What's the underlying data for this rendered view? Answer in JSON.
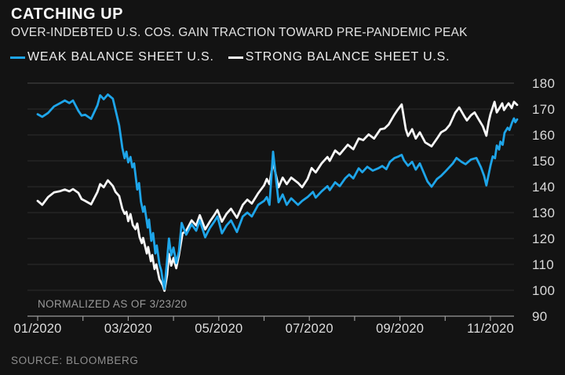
{
  "header": {
    "title": "CATCHING UP",
    "subtitle": "OVER-INDEBTED U.S. COS. GAIN TRACTION TOWARD PRE-PANDEMIC PEAK"
  },
  "footer": {
    "source": "SOURCE: BLOOMBERG"
  },
  "colors": {
    "background": "#131313",
    "weak_line": "#1ea5e9",
    "strong_line": "#f7f7f7",
    "gridline": "#2c2c2c",
    "top_border": "#4a4a4a",
    "axis": "#9a9a9a"
  },
  "chart_data": {
    "type": "line",
    "title": "CATCHING UP",
    "subtitle": "OVER-INDEBTED U.S. COS. GAIN TRACTION TOWARD PRE-PANDEMIC PEAK",
    "annotation": "NORMALIZED AS OF 3/23/20",
    "grid": "horizontal",
    "legend_position": "top-left",
    "x_axis": {
      "unit": "months since 01/2020 tick",
      "range": [
        0,
        10.6
      ],
      "minor_tick_positions": [
        0,
        1,
        2,
        3,
        4,
        5,
        6,
        7,
        8,
        9,
        10
      ],
      "tick_labels": [
        {
          "pos": 0,
          "label": "01/2020"
        },
        {
          "pos": 2,
          "label": "03/2020"
        },
        {
          "pos": 4,
          "label": "05/2020"
        },
        {
          "pos": 6,
          "label": "07/2020"
        },
        {
          "pos": 8,
          "label": "09/2020"
        },
        {
          "pos": 10,
          "label": "11/2020"
        }
      ]
    },
    "y_axis": {
      "range": [
        90,
        180
      ],
      "side": "right",
      "ticks": [
        180,
        170,
        160,
        150,
        140,
        130,
        120,
        110,
        100,
        90
      ]
    },
    "series": [
      {
        "name": "WEAK BALANCE SHEET U.S.",
        "color": "#1ea5e9",
        "points": [
          [
            0.0,
            168.0
          ],
          [
            0.1,
            167.0
          ],
          [
            0.23,
            168.5
          ],
          [
            0.36,
            171.0
          ],
          [
            0.5,
            172.3
          ],
          [
            0.6,
            173.3
          ],
          [
            0.7,
            172.3
          ],
          [
            0.78,
            173.3
          ],
          [
            0.9,
            169.3
          ],
          [
            0.97,
            167.5
          ],
          [
            1.05,
            167.8
          ],
          [
            1.18,
            166.2
          ],
          [
            1.32,
            171.5
          ],
          [
            1.38,
            175.3
          ],
          [
            1.46,
            173.8
          ],
          [
            1.55,
            175.6
          ],
          [
            1.66,
            174.0
          ],
          [
            1.72,
            169.7
          ],
          [
            1.8,
            163.6
          ],
          [
            1.87,
            155.0
          ],
          [
            1.92,
            151.0
          ],
          [
            1.96,
            153.5
          ],
          [
            2.0,
            149.4
          ],
          [
            2.05,
            151.5
          ],
          [
            2.09,
            147.5
          ],
          [
            2.13,
            149.0
          ],
          [
            2.2,
            138.9
          ],
          [
            2.24,
            141.4
          ],
          [
            2.28,
            134.3
          ],
          [
            2.33,
            130.3
          ],
          [
            2.36,
            132.4
          ],
          [
            2.43,
            124.2
          ],
          [
            2.46,
            127.3
          ],
          [
            2.51,
            119.1
          ],
          [
            2.55,
            122.1
          ],
          [
            2.6,
            114.2
          ],
          [
            2.63,
            117.3
          ],
          [
            2.69,
            110.0
          ],
          [
            2.73,
            107.6
          ],
          [
            2.76,
            104.0
          ],
          [
            2.8,
            100.5
          ],
          [
            2.86,
            112.0
          ],
          [
            2.9,
            120.0
          ],
          [
            2.95,
            113.5
          ],
          [
            3.0,
            116.5
          ],
          [
            3.06,
            110.5
          ],
          [
            3.12,
            115.0
          ],
          [
            3.18,
            126.0
          ],
          [
            3.28,
            121.5
          ],
          [
            3.4,
            125.5
          ],
          [
            3.5,
            123.0
          ],
          [
            3.58,
            127.0
          ],
          [
            3.7,
            120.5
          ],
          [
            3.8,
            124.0
          ],
          [
            3.9,
            126.5
          ],
          [
            3.97,
            128.5
          ],
          [
            4.07,
            122.0
          ],
          [
            4.17,
            125.0
          ],
          [
            4.27,
            127.0
          ],
          [
            4.4,
            122.5
          ],
          [
            4.53,
            128.5
          ],
          [
            4.63,
            130.0
          ],
          [
            4.73,
            128.5
          ],
          [
            4.87,
            133.0
          ],
          [
            5.0,
            134.5
          ],
          [
            5.06,
            136.0
          ],
          [
            5.12,
            133.0
          ],
          [
            5.2,
            153.5
          ],
          [
            5.32,
            134.0
          ],
          [
            5.41,
            137.0
          ],
          [
            5.5,
            133.0
          ],
          [
            5.6,
            135.5
          ],
          [
            5.75,
            133.0
          ],
          [
            5.84,
            134.5
          ],
          [
            5.96,
            136.0
          ],
          [
            6.08,
            138.0
          ],
          [
            6.14,
            135.8
          ],
          [
            6.27,
            138.2
          ],
          [
            6.4,
            140.2
          ],
          [
            6.45,
            138.7
          ],
          [
            6.57,
            141.7
          ],
          [
            6.67,
            140.2
          ],
          [
            6.79,
            143.2
          ],
          [
            6.88,
            144.7
          ],
          [
            6.97,
            143.2
          ],
          [
            7.09,
            147.1
          ],
          [
            7.17,
            145.6
          ],
          [
            7.28,
            147.7
          ],
          [
            7.4,
            146.2
          ],
          [
            7.52,
            147.1
          ],
          [
            7.61,
            148.0
          ],
          [
            7.7,
            146.8
          ],
          [
            7.78,
            149.6
          ],
          [
            7.88,
            151.1
          ],
          [
            7.97,
            151.7
          ],
          [
            8.04,
            152.3
          ],
          [
            8.09,
            150.2
          ],
          [
            8.18,
            148.1
          ],
          [
            8.27,
            149.6
          ],
          [
            8.35,
            146.6
          ],
          [
            8.44,
            149.0
          ],
          [
            8.61,
            142.0
          ],
          [
            8.7,
            140.0
          ],
          [
            8.82,
            143.0
          ],
          [
            8.91,
            144.2
          ],
          [
            9.01,
            146.0
          ],
          [
            9.17,
            149.0
          ],
          [
            9.25,
            151.1
          ],
          [
            9.36,
            149.6
          ],
          [
            9.45,
            148.7
          ],
          [
            9.57,
            150.5
          ],
          [
            9.69,
            151.1
          ],
          [
            9.79,
            147.5
          ],
          [
            9.86,
            144.2
          ],
          [
            9.91,
            140.5
          ],
          [
            10.0,
            148.1
          ],
          [
            10.05,
            151.7
          ],
          [
            10.1,
            151.0
          ],
          [
            10.14,
            155.9
          ],
          [
            10.19,
            154.4
          ],
          [
            10.22,
            157.4
          ],
          [
            10.27,
            156.2
          ],
          [
            10.31,
            160.8
          ],
          [
            10.38,
            162.8
          ],
          [
            10.42,
            161.9
          ],
          [
            10.48,
            164.9
          ],
          [
            10.52,
            166.4
          ],
          [
            10.55,
            164.9
          ],
          [
            10.59,
            166.0
          ]
        ]
      },
      {
        "name": "STRONG BALANCE SHEET U.S.",
        "color": "#f7f7f7",
        "points": [
          [
            0.0,
            134.5
          ],
          [
            0.1,
            133.0
          ],
          [
            0.23,
            136.0
          ],
          [
            0.36,
            137.8
          ],
          [
            0.5,
            138.3
          ],
          [
            0.6,
            138.9
          ],
          [
            0.7,
            138.2
          ],
          [
            0.78,
            139.1
          ],
          [
            0.9,
            137.6
          ],
          [
            0.97,
            135.2
          ],
          [
            1.05,
            134.5
          ],
          [
            1.18,
            133.2
          ],
          [
            1.32,
            138.0
          ],
          [
            1.38,
            141.0
          ],
          [
            1.46,
            139.8
          ],
          [
            1.55,
            142.5
          ],
          [
            1.66,
            140.3
          ],
          [
            1.72,
            138.0
          ],
          [
            1.8,
            136.4
          ],
          [
            1.87,
            131.5
          ],
          [
            1.92,
            129.5
          ],
          [
            1.96,
            130.3
          ],
          [
            2.0,
            126.7
          ],
          [
            2.05,
            129.4
          ],
          [
            2.1,
            125.2
          ],
          [
            2.16,
            123.6
          ],
          [
            2.2,
            125.8
          ],
          [
            2.25,
            120.6
          ],
          [
            2.3,
            118.2
          ],
          [
            2.33,
            120.2
          ],
          [
            2.41,
            114.2
          ],
          [
            2.44,
            116.7
          ],
          [
            2.5,
            111.2
          ],
          [
            2.53,
            113.6
          ],
          [
            2.58,
            108.2
          ],
          [
            2.62,
            110.0
          ],
          [
            2.69,
            104.2
          ],
          [
            2.76,
            102.0
          ],
          [
            2.8,
            99.8
          ],
          [
            2.86,
            106.0
          ],
          [
            2.9,
            114.0
          ],
          [
            2.95,
            109.5
          ],
          [
            3.0,
            112.5
          ],
          [
            3.06,
            108.5
          ],
          [
            3.12,
            113.5
          ],
          [
            3.2,
            122.0
          ],
          [
            3.28,
            123.0
          ],
          [
            3.4,
            127.0
          ],
          [
            3.5,
            125.0
          ],
          [
            3.58,
            129.0
          ],
          [
            3.7,
            123.5
          ],
          [
            3.8,
            126.5
          ],
          [
            3.9,
            129.0
          ],
          [
            3.97,
            131.0
          ],
          [
            4.07,
            126.5
          ],
          [
            4.17,
            129.5
          ],
          [
            4.27,
            131.5
          ],
          [
            4.4,
            128.0
          ],
          [
            4.53,
            133.0
          ],
          [
            4.63,
            135.0
          ],
          [
            4.73,
            133.5
          ],
          [
            4.87,
            137.5
          ],
          [
            5.0,
            140.5
          ],
          [
            5.06,
            143.0
          ],
          [
            5.12,
            141.0
          ],
          [
            5.2,
            149.5
          ],
          [
            5.32,
            139.8
          ],
          [
            5.41,
            143.5
          ],
          [
            5.5,
            141.0
          ],
          [
            5.6,
            143.5
          ],
          [
            5.75,
            141.5
          ],
          [
            5.84,
            139.8
          ],
          [
            5.96,
            143.0
          ],
          [
            6.05,
            147.2
          ],
          [
            6.14,
            145.5
          ],
          [
            6.27,
            149.0
          ],
          [
            6.4,
            151.5
          ],
          [
            6.45,
            150.0
          ],
          [
            6.57,
            154.0
          ],
          [
            6.67,
            152.5
          ],
          [
            6.85,
            156.2
          ],
          [
            6.97,
            154.5
          ],
          [
            7.09,
            158.6
          ],
          [
            7.19,
            158.0
          ],
          [
            7.31,
            160.2
          ],
          [
            7.43,
            158.6
          ],
          [
            7.57,
            162.2
          ],
          [
            7.66,
            162.5
          ],
          [
            7.75,
            164.0
          ],
          [
            7.87,
            167.6
          ],
          [
            7.95,
            169.7
          ],
          [
            8.04,
            171.8
          ],
          [
            8.13,
            162.2
          ],
          [
            8.18,
            159.6
          ],
          [
            8.27,
            162.2
          ],
          [
            8.35,
            158.6
          ],
          [
            8.44,
            161.0
          ],
          [
            8.56,
            157.1
          ],
          [
            8.7,
            155.6
          ],
          [
            8.82,
            158.6
          ],
          [
            8.91,
            161.0
          ],
          [
            9.01,
            162.0
          ],
          [
            9.1,
            163.9
          ],
          [
            9.22,
            168.5
          ],
          [
            9.31,
            170.6
          ],
          [
            9.43,
            167.0
          ],
          [
            9.48,
            165.6
          ],
          [
            9.57,
            167.6
          ],
          [
            9.65,
            168.7
          ],
          [
            9.74,
            166.0
          ],
          [
            9.83,
            163.4
          ],
          [
            9.91,
            159.7
          ],
          [
            9.96,
            165.0
          ],
          [
            10.0,
            168.0
          ],
          [
            10.09,
            172.8
          ],
          [
            10.14,
            168.7
          ],
          [
            10.21,
            170.7
          ],
          [
            10.26,
            172.2
          ],
          [
            10.3,
            169.6
          ],
          [
            10.35,
            171.0
          ],
          [
            10.4,
            172.2
          ],
          [
            10.47,
            170.4
          ],
          [
            10.52,
            172.8
          ],
          [
            10.59,
            171.6
          ]
        ]
      }
    ]
  }
}
